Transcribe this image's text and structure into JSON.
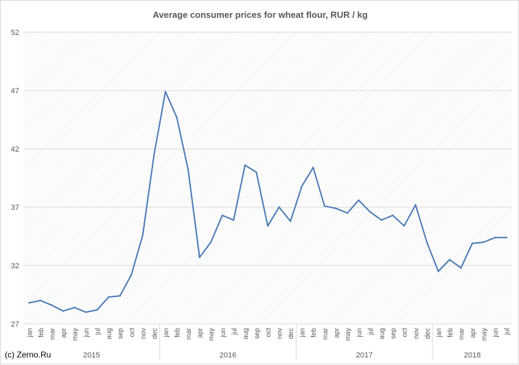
{
  "chart_data": {
    "type": "line",
    "title": "Average consumer prices for wheat flour, RUR / kg",
    "xlabel": "",
    "ylabel": "",
    "ylim": [
      27,
      52
    ],
    "yticks": [
      27,
      32,
      37,
      42,
      47,
      52
    ],
    "grid": true,
    "legend": "none",
    "line_color": "#4a7ab5",
    "years": [
      {
        "label": "2015",
        "months": [
          "jan",
          "feb",
          "mar",
          "apr",
          "may",
          "jun",
          "jul",
          "aug",
          "sep",
          "oct",
          "nov",
          "dec"
        ]
      },
      {
        "label": "2016",
        "months": [
          "jan",
          "feb",
          "mar",
          "apr",
          "may",
          "jun",
          "jul",
          "aug",
          "sep",
          "oct",
          "nov",
          "dec"
        ]
      },
      {
        "label": "2017",
        "months": [
          "jan",
          "feb",
          "mar",
          "apr",
          "may",
          "jun",
          "jul",
          "aug",
          "sep",
          "oct",
          "nov",
          "dec"
        ]
      },
      {
        "label": "2018",
        "months": [
          "jan",
          "feb",
          "mar",
          "apr",
          "may",
          "jun",
          "jul"
        ]
      }
    ],
    "values": [
      28.8,
      29.0,
      28.6,
      28.1,
      28.4,
      28.0,
      28.2,
      29.3,
      29.4,
      31.2,
      34.6,
      41.5,
      46.9,
      44.7,
      40.2,
      32.7,
      34.0,
      36.3,
      35.9,
      40.6,
      40.0,
      35.4,
      37.0,
      35.8,
      38.8,
      40.4,
      37.1,
      36.9,
      36.5,
      37.6,
      36.6,
      35.9,
      36.3,
      35.4,
      37.2,
      34.0,
      31.5,
      32.5,
      31.8,
      33.9,
      34.0,
      34.4,
      34.4
    ]
  },
  "credit": "(c) Zerno.Ru"
}
